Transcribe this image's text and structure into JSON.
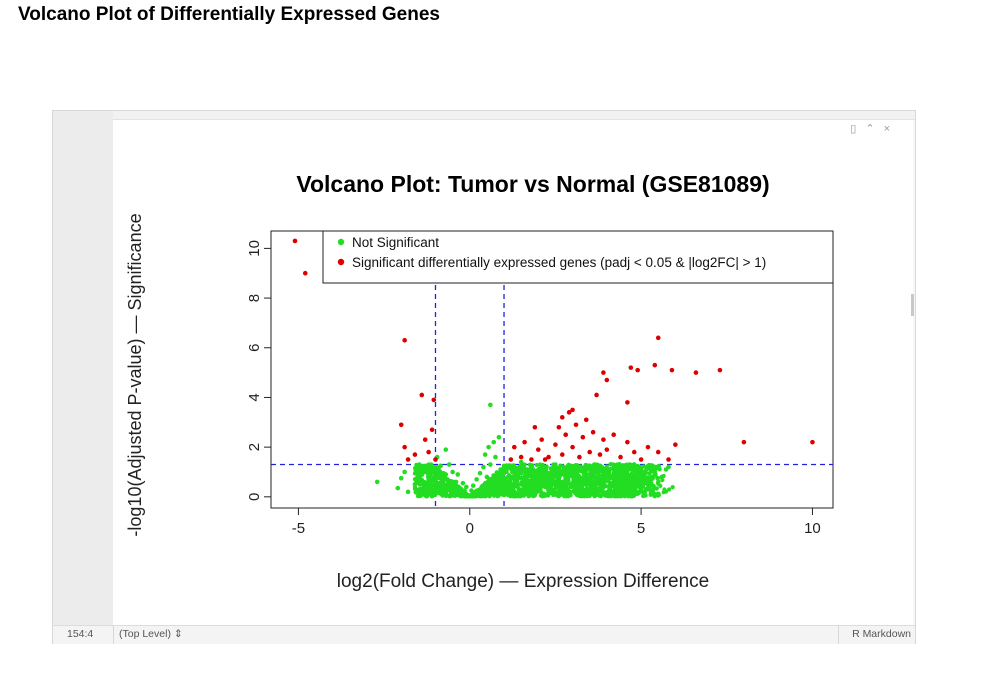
{
  "page": {
    "heading": "Volcano Plot of Differentially Expressed Genes"
  },
  "ide": {
    "status_position": "154:4",
    "status_scope": "(Top Level) ⇕",
    "status_mode": "R Markdown",
    "panel_icons": [
      "broom-icon",
      "collapse-icon",
      "close-icon"
    ]
  },
  "chart_data": {
    "type": "scatter",
    "title": "Volcano Plot: Tumor vs Normal (GSE81089)",
    "xlabel": "log2(Fold Change) — Expression Difference",
    "ylabel": "-log10(Adjusted P-value) — Significance",
    "xlim": [
      -5.8,
      10.6
    ],
    "ylim": [
      -0.45,
      10.7
    ],
    "x_ticks": [
      -5,
      0,
      5,
      10
    ],
    "y_ticks": [
      0,
      2,
      4,
      6,
      8,
      10
    ],
    "x_tick_labels": [
      "-5",
      "0",
      "5",
      "10"
    ],
    "y_tick_labels": [
      "0",
      "2",
      "4",
      "6",
      "8",
      "10"
    ],
    "grid": false,
    "thresholds": {
      "log2fc": [
        -1,
        1
      ],
      "neg_log10_padj": 1.3,
      "color": "#2222dd",
      "style": "dashed"
    },
    "legend": {
      "placement": "top-right",
      "entries": [
        {
          "label": "Not Significant",
          "color": "#22dd22"
        },
        {
          "label": "Significant differentially expressed genes (padj < 0.05 & |log2FC| > 1)",
          "color": "#dd0000"
        }
      ]
    },
    "series": [
      {
        "name": "Not Significant",
        "color": "#22dd22",
        "points": [
          [
            -2.7,
            0.6
          ],
          [
            -2.1,
            0.35
          ],
          [
            -2.0,
            0.75
          ],
          [
            -1.9,
            1.0
          ],
          [
            -1.8,
            0.2
          ],
          [
            -1.6,
            0.5
          ],
          [
            -1.5,
            0.9
          ],
          [
            -1.4,
            1.2
          ],
          [
            -1.3,
            0.3
          ],
          [
            -1.2,
            0.7
          ],
          [
            -1.1,
            1.05
          ],
          [
            -1.0,
            0.45
          ],
          [
            -0.95,
            1.6
          ],
          [
            -0.9,
            0.8
          ],
          [
            -0.85,
            1.25
          ],
          [
            -0.8,
            0.3
          ],
          [
            -0.7,
            1.9
          ],
          [
            -0.7,
            0.9
          ],
          [
            -0.6,
            1.3
          ],
          [
            -0.55,
            0.5
          ],
          [
            -0.5,
            1.0
          ],
          [
            -0.4,
            0.6
          ],
          [
            -0.35,
            0.9
          ],
          [
            -0.3,
            0.3
          ],
          [
            -0.2,
            0.55
          ],
          [
            -0.15,
            0.25
          ],
          [
            -0.1,
            0.4
          ],
          [
            0.0,
            0.05
          ],
          [
            0.05,
            0.25
          ],
          [
            0.1,
            0.45
          ],
          [
            0.2,
            0.7
          ],
          [
            0.3,
            0.95
          ],
          [
            0.35,
            0.4
          ],
          [
            0.4,
            1.2
          ],
          [
            0.45,
            1.7
          ],
          [
            0.5,
            0.8
          ],
          [
            0.55,
            2.0
          ],
          [
            0.6,
            1.3
          ],
          [
            0.65,
            0.55
          ],
          [
            0.7,
            2.2
          ],
          [
            0.6,
            3.7
          ],
          [
            0.75,
            1.6
          ],
          [
            0.8,
            0.9
          ],
          [
            0.85,
            2.4
          ],
          [
            0.9,
            1.1
          ],
          [
            0.95,
            0.6
          ],
          [
            1.0,
            1.2
          ],
          [
            1.2,
            0.8
          ],
          [
            1.4,
            1.0
          ],
          [
            1.6,
            0.5
          ],
          [
            1.8,
            1.2
          ],
          [
            2.0,
            0.7
          ],
          [
            2.2,
            0.4
          ],
          [
            2.4,
            1.1
          ],
          [
            2.6,
            0.8
          ],
          [
            2.8,
            0.5
          ],
          [
            3.0,
            1.0
          ],
          [
            3.2,
            0.6
          ],
          [
            3.4,
            0.9
          ],
          [
            3.6,
            0.4
          ],
          [
            3.8,
            0.8
          ],
          [
            4.0,
            1.0
          ],
          [
            4.2,
            0.6
          ],
          [
            4.4,
            0.9
          ],
          [
            4.6,
            0.5
          ],
          [
            4.8,
            0.8
          ],
          [
            5.0,
            1.1
          ],
          [
            5.2,
            0.7
          ],
          [
            5.4,
            1.0
          ],
          [
            5.6,
            0.8
          ],
          [
            5.8,
            1.2
          ],
          [
            1.5,
            1.4
          ],
          [
            2.5,
            1.3
          ],
          [
            3.5,
            1.25
          ],
          [
            4.5,
            1.2
          ]
        ]
      },
      {
        "name": "Significant differentially expressed genes (padj < 0.05 & |log2FC| > 1)",
        "color": "#dd0000",
        "points": [
          [
            -5.1,
            10.3
          ],
          [
            -4.8,
            9.0
          ],
          [
            -1.9,
            6.3
          ],
          [
            -1.4,
            4.1
          ],
          [
            -1.05,
            3.9
          ],
          [
            -2.0,
            2.9
          ],
          [
            -1.1,
            2.7
          ],
          [
            -1.9,
            2.0
          ],
          [
            -1.6,
            1.7
          ],
          [
            -1.3,
            2.3
          ],
          [
            -1.0,
            1.5
          ],
          [
            -1.8,
            1.5
          ],
          [
            -1.2,
            1.8
          ],
          [
            1.2,
            1.5
          ],
          [
            1.3,
            2.0
          ],
          [
            1.5,
            1.6
          ],
          [
            1.6,
            2.2
          ],
          [
            1.8,
            1.5
          ],
          [
            2.0,
            1.9
          ],
          [
            2.1,
            2.3
          ],
          [
            2.3,
            1.6
          ],
          [
            2.5,
            2.1
          ],
          [
            2.6,
            2.8
          ],
          [
            2.7,
            1.7
          ],
          [
            2.8,
            2.5
          ],
          [
            2.9,
            3.4
          ],
          [
            3.0,
            2.0
          ],
          [
            3.1,
            2.9
          ],
          [
            3.2,
            1.6
          ],
          [
            3.3,
            2.4
          ],
          [
            3.4,
            3.1
          ],
          [
            3.5,
            1.8
          ],
          [
            3.6,
            2.6
          ],
          [
            3.8,
            1.7
          ],
          [
            3.9,
            2.3
          ],
          [
            4.0,
            1.9
          ],
          [
            4.2,
            2.5
          ],
          [
            4.4,
            1.6
          ],
          [
            4.6,
            2.2
          ],
          [
            4.8,
            1.8
          ],
          [
            5.0,
            1.5
          ],
          [
            5.2,
            2.0
          ],
          [
            5.5,
            1.8
          ],
          [
            5.8,
            1.5
          ],
          [
            1.9,
            2.8
          ],
          [
            2.2,
            1.5
          ],
          [
            3.7,
            4.1
          ],
          [
            3.0,
            3.5
          ],
          [
            2.7,
            3.2
          ],
          [
            4.0,
            4.7
          ],
          [
            3.9,
            5.0
          ],
          [
            4.6,
            3.8
          ],
          [
            4.7,
            5.2
          ],
          [
            4.9,
            5.1
          ],
          [
            5.4,
            5.3
          ],
          [
            5.5,
            6.4
          ],
          [
            5.9,
            5.1
          ],
          [
            6.6,
            5.0
          ],
          [
            7.3,
            5.1
          ],
          [
            8.0,
            2.2
          ],
          [
            10.0,
            2.2
          ],
          [
            6.0,
            2.1
          ]
        ]
      }
    ]
  }
}
